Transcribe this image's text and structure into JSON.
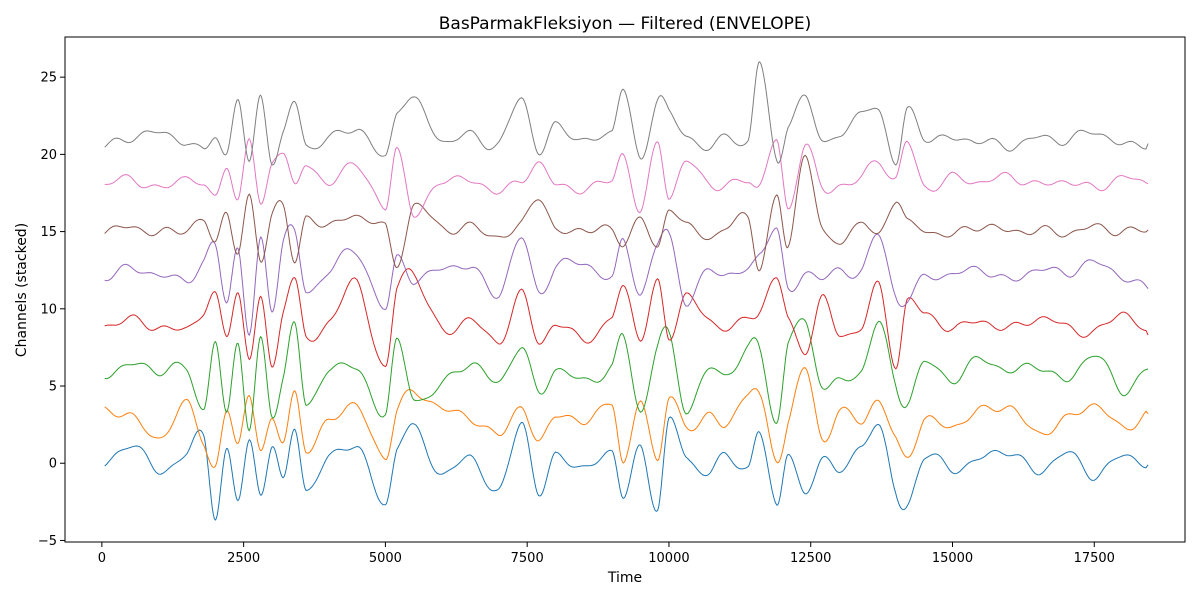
{
  "chart_data": {
    "type": "line",
    "title": "BasParmakFleksiyon — Filtered (ENVELOPE)",
    "xlabel": "Time",
    "ylabel": "Channels (stacked)",
    "xlim": [
      -650,
      19100
    ],
    "ylim": [
      -5.1,
      27.6
    ],
    "x_ticks": [
      0,
      2500,
      5000,
      7500,
      10000,
      12500,
      15000,
      17500
    ],
    "x_tick_labels": [
      "0",
      "2500",
      "5000",
      "7500",
      "10000",
      "12500",
      "15000",
      "17500"
    ],
    "y_ticks": [
      -5,
      0,
      5,
      10,
      15,
      20,
      25
    ],
    "y_tick_labels": [
      "−5",
      "0",
      "5",
      "10",
      "15",
      "20",
      "25"
    ],
    "grid": false,
    "legend": "none",
    "x": [
      50,
      500,
      1000,
      1500,
      1800,
      2000,
      2200,
      2400,
      2600,
      2800,
      3000,
      3200,
      3400,
      3600,
      4000,
      4500,
      5000,
      5200,
      5500,
      6000,
      6500,
      7000,
      7400,
      7700,
      8000,
      8500,
      9000,
      9200,
      9500,
      9800,
      10000,
      10300,
      10700,
      11000,
      11400,
      11600,
      11900,
      12100,
      12400,
      12700,
      13000,
      13400,
      13700,
      14000,
      14200,
      14500,
      15000,
      15500,
      16000,
      16500,
      17000,
      17500,
      18000,
      18450
    ],
    "series": [
      {
        "color": "#1f77b4",
        "offset": 0,
        "values": [
          -0.2,
          1.3,
          -0.5,
          0.6,
          1.8,
          -3.4,
          0.7,
          -2.4,
          1.5,
          -1.9,
          1.0,
          -1.2,
          2.5,
          -1.8,
          0.4,
          1.0,
          -2.6,
          0.9,
          2.3,
          -0.8,
          0.5,
          -2.0,
          2.8,
          -2.1,
          0.6,
          -0.5,
          0.8,
          -2.2,
          1.0,
          -2.9,
          2.7,
          0.4,
          -0.6,
          0.5,
          -0.3,
          2.0,
          -2.8,
          0.9,
          -2.3,
          0.5,
          -0.5,
          1.0,
          2.6,
          -2.0,
          -2.8,
          0.5,
          -0.4,
          0.3,
          0.8,
          -0.6,
          0.7,
          -0.8,
          0.5,
          -0.1
        ]
      },
      {
        "color": "#ff7f0e",
        "offset": 3,
        "values": [
          3.4,
          3.1,
          1.6,
          3.8,
          1.4,
          -0.3,
          3.4,
          1.1,
          4.6,
          0.9,
          2.6,
          1.5,
          4.7,
          0.8,
          2.8,
          3.6,
          0.4,
          3.4,
          4.6,
          3.5,
          3.0,
          1.8,
          3.7,
          1.2,
          3.3,
          2.5,
          4.0,
          -0.3,
          4.3,
          0.1,
          4.2,
          2.4,
          3.0,
          2.5,
          4.6,
          4.2,
          0.4,
          2.5,
          6.2,
          1.6,
          3.3,
          2.8,
          4.0,
          1.5,
          0.5,
          2.7,
          2.4,
          3.4,
          3.6,
          2.0,
          2.8,
          3.8,
          2.3,
          3.2
        ]
      },
      {
        "color": "#2ca02c",
        "offset": 6,
        "values": [
          5.7,
          6.4,
          6.0,
          6.1,
          3.5,
          8.0,
          3.0,
          7.9,
          2.3,
          8.0,
          3.0,
          5.5,
          9.4,
          3.6,
          6.2,
          6.0,
          3.3,
          7.8,
          4.2,
          5.1,
          6.5,
          5.2,
          7.6,
          4.5,
          6.1,
          5.3,
          6.2,
          8.2,
          3.3,
          7.7,
          8.2,
          3.5,
          6.1,
          5.7,
          7.4,
          7.4,
          2.6,
          7.8,
          9.0,
          5.2,
          5.3,
          6.0,
          9.2,
          5.0,
          4.0,
          6.5,
          5.4,
          6.8,
          5.9,
          6.4,
          5.3,
          7.1,
          4.7,
          6.1
        ]
      },
      {
        "color": "#d62728",
        "offset": 9,
        "values": [
          8.9,
          9.3,
          8.8,
          8.7,
          9.9,
          10.8,
          8.2,
          11.2,
          6.7,
          10.8,
          6.0,
          10.1,
          12.0,
          8.0,
          9.2,
          11.6,
          6.1,
          11.3,
          12.3,
          8.5,
          9.4,
          7.8,
          11.0,
          7.8,
          9.1,
          8.0,
          9.4,
          11.4,
          8.2,
          11.6,
          8.1,
          11.0,
          9.1,
          8.9,
          9.3,
          9.8,
          12.2,
          9.3,
          7.2,
          10.8,
          8.2,
          9.0,
          11.4,
          6.3,
          10.6,
          9.6,
          8.8,
          9.2,
          8.7,
          9.4,
          8.9,
          8.4,
          9.8,
          8.3
        ]
      },
      {
        "color": "#9467bd",
        "offset": 12,
        "values": [
          12.1,
          12.6,
          12.2,
          11.9,
          13.0,
          14.1,
          10.4,
          14.0,
          8.4,
          14.3,
          10.0,
          14.5,
          15.0,
          11.0,
          12.6,
          13.6,
          10.0,
          13.2,
          11.9,
          12.6,
          12.7,
          11.0,
          14.6,
          11.1,
          12.7,
          13.0,
          11.9,
          14.5,
          10.9,
          14.2,
          14.9,
          10.4,
          12.6,
          12.2,
          12.5,
          13.6,
          15.2,
          11.1,
          12.4,
          12.0,
          12.4,
          12.5,
          14.8,
          10.8,
          10.6,
          12.0,
          12.2,
          12.6,
          11.8,
          12.6,
          12.3,
          13.0,
          12.1,
          11.3
        ]
      },
      {
        "color": "#8c564b",
        "offset": 15,
        "values": [
          15.0,
          15.3,
          14.9,
          15.2,
          15.7,
          14.2,
          16.3,
          13.8,
          17.1,
          13.1,
          16.2,
          16.8,
          12.9,
          15.8,
          15.4,
          16.0,
          15.2,
          12.8,
          16.7,
          15.2,
          15.3,
          14.7,
          15.4,
          17.4,
          15.0,
          15.2,
          15.0,
          14.3,
          15.9,
          13.8,
          16.6,
          15.4,
          14.6,
          15.3,
          15.8,
          12.8,
          17.2,
          14.0,
          20.1,
          15.0,
          14.4,
          15.6,
          14.7,
          17.2,
          15.6,
          15.1,
          14.8,
          15.4,
          15.0,
          15.1,
          14.9,
          15.3,
          15.0,
          15.1
        ]
      },
      {
        "color": "#e377c2",
        "offset": 18,
        "values": [
          18.0,
          18.5,
          17.7,
          18.6,
          17.8,
          17.3,
          19.4,
          16.9,
          21.0,
          16.7,
          19.6,
          20.1,
          17.8,
          19.5,
          18.0,
          19.5,
          16.4,
          20.5,
          16.1,
          18.4,
          18.2,
          17.7,
          18.2,
          19.5,
          18.0,
          17.8,
          18.4,
          20.0,
          16.2,
          20.9,
          17.3,
          19.5,
          18.2,
          17.9,
          18.4,
          18.0,
          20.9,
          16.3,
          20.8,
          17.7,
          18.0,
          18.5,
          19.6,
          18.4,
          20.8,
          17.9,
          18.5,
          18.2,
          18.6,
          18.0,
          18.3,
          17.8,
          18.5,
          18.1
        ]
      },
      {
        "color": "#7f7f7f",
        "offset": 21,
        "values": [
          20.5,
          21.1,
          21.4,
          20.8,
          20.2,
          21.3,
          20.0,
          23.6,
          19.3,
          24.0,
          19.5,
          21.2,
          23.5,
          20.6,
          21.0,
          21.7,
          19.8,
          22.8,
          23.5,
          20.9,
          21.3,
          20.6,
          23.7,
          20.2,
          21.8,
          20.9,
          21.5,
          24.5,
          19.4,
          23.7,
          22.9,
          21.0,
          20.6,
          21.1,
          20.9,
          26.2,
          19.3,
          22.0,
          23.7,
          20.8,
          21.4,
          22.5,
          23.0,
          19.4,
          22.8,
          21.2,
          21.0,
          20.9,
          20.5,
          21.1,
          20.9,
          21.5,
          20.6,
          20.7
        ]
      }
    ]
  }
}
